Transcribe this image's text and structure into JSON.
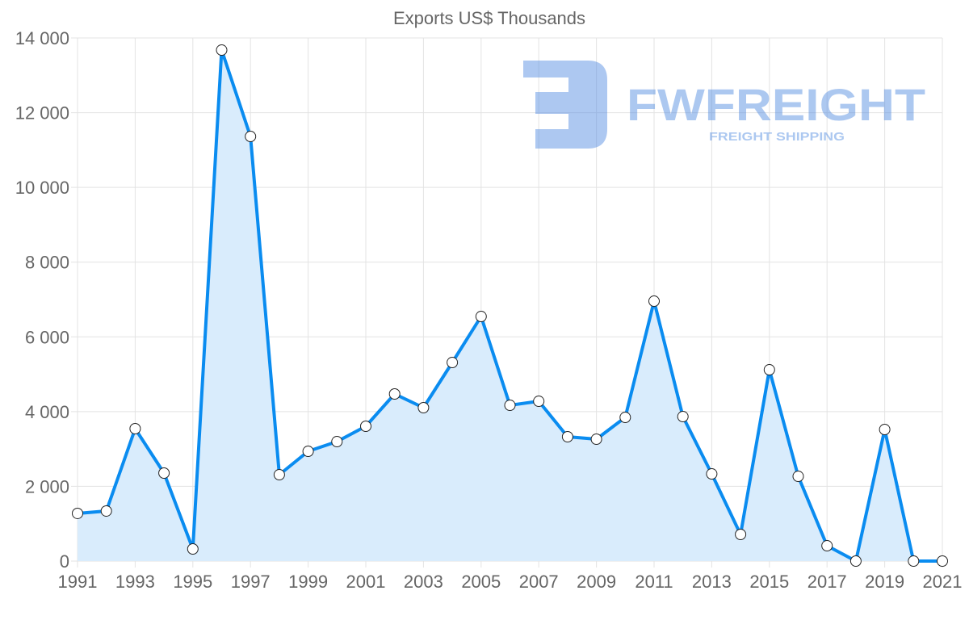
{
  "watermark": {
    "brand": "FWFREIGHT",
    "tagline": "FREIGHT SHIPPING"
  },
  "chart_data": {
    "type": "area",
    "title": "Exports US$ Thousands",
    "xlabel": "",
    "ylabel": "",
    "x": [
      1991,
      1992,
      1993,
      1994,
      1995,
      1996,
      1997,
      1998,
      1999,
      2000,
      2001,
      2002,
      2003,
      2004,
      2005,
      2006,
      2007,
      2008,
      2009,
      2010,
      2011,
      2012,
      2013,
      2014,
      2015,
      2016,
      2017,
      2018,
      2019,
      2020,
      2021
    ],
    "series": [
      {
        "name": "Exports US$ Thousands",
        "values": [
          1275,
          1340,
          3543,
          2355,
          324,
          13675,
          11363,
          2311,
          2938,
          3197,
          3608,
          4472,
          4105,
          5314,
          6546,
          4169,
          4277,
          3327,
          3262,
          3845,
          6956,
          3867,
          2333,
          713,
          5120,
          2268,
          410,
          0,
          3521,
          0,
          0
        ],
        "color": "#0a8cf0",
        "fill": "#d9ecfc"
      }
    ],
    "xlim": [
      1991,
      2021
    ],
    "ylim": [
      0,
      14000
    ],
    "yticks": [
      "0",
      "2 000",
      "4 000",
      "6 000",
      "8 000",
      "10 000",
      "12 000",
      "14 000"
    ],
    "xticks": [
      "1991",
      "1993",
      "1995",
      "1997",
      "1999",
      "2001",
      "2003",
      "2005",
      "2007",
      "2009",
      "2011",
      "2013",
      "2015",
      "2017",
      "2019",
      "2021"
    ],
    "grid": true,
    "legend": "none"
  }
}
